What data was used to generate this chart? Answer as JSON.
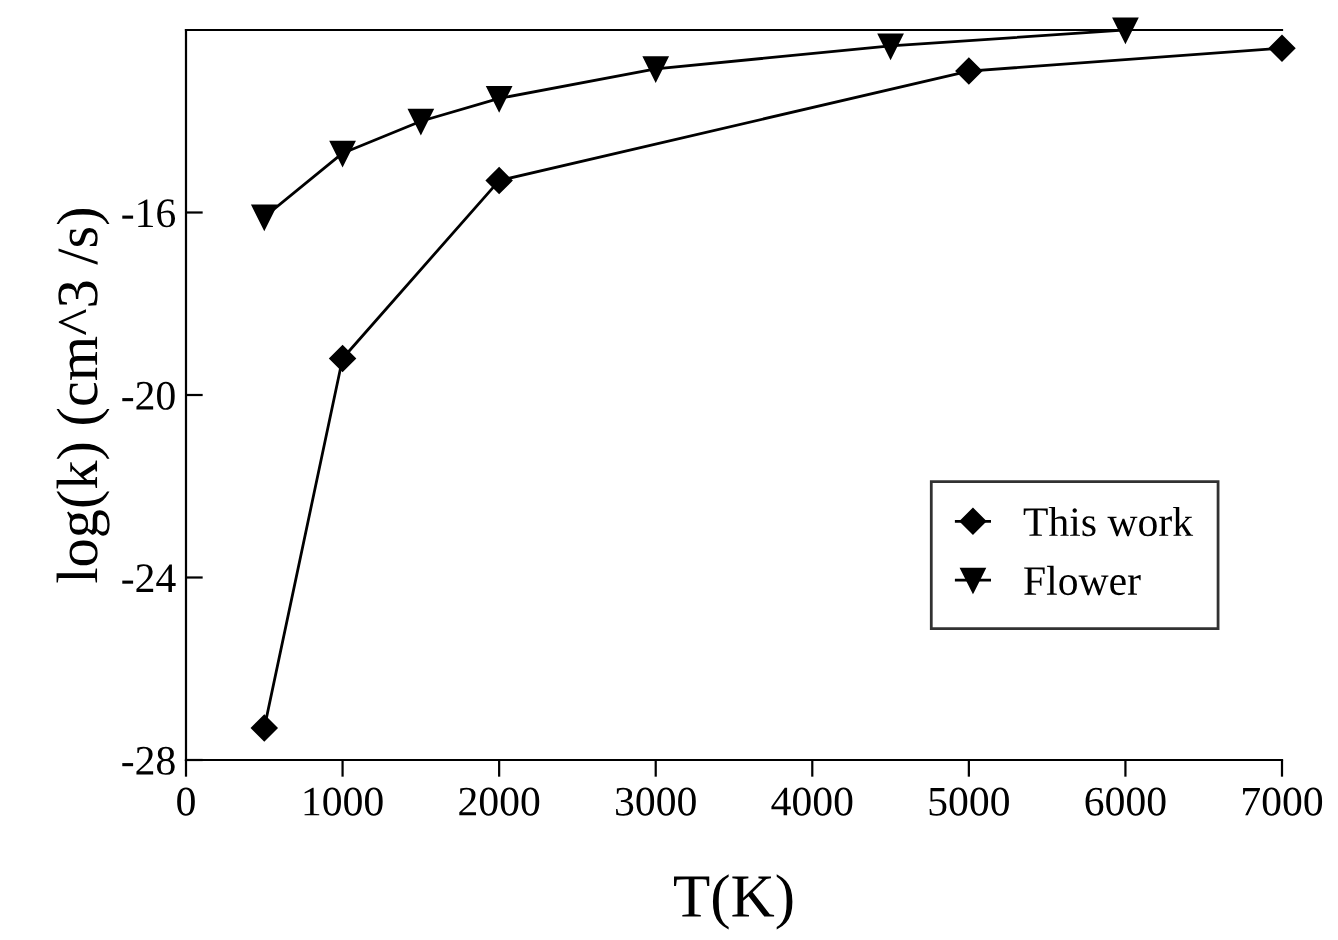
{
  "chart_data": {
    "type": "line",
    "xlabel": "T(K)",
    "ylabel": "log(k) (cm^3 /s)",
    "xlim": [
      0,
      7000
    ],
    "xticks": [
      0,
      1000,
      2000,
      3000,
      4000,
      5000,
      6000,
      7000
    ],
    "ylim": [
      -28,
      -12
    ],
    "yticks": [
      -28,
      -24,
      -20,
      -16
    ],
    "legend": "bottom right",
    "grid": false,
    "series": [
      {
        "name": "This work",
        "color": "#000000",
        "marker": "diamond",
        "x": [
          500,
          1000,
          2000,
          5000,
          7000
        ],
        "values": [
          -27.3,
          -19.2,
          -15.3,
          -12.9,
          -12.4
        ]
      },
      {
        "name": "Flower",
        "color": "#000000",
        "marker": "triangle",
        "x": [
          500,
          1000,
          1500,
          2000,
          3000,
          4500,
          6000
        ],
        "values": [
          -16.1,
          -14.7,
          -14.0,
          -13.5,
          -12.85,
          -12.35,
          -12.0
        ]
      }
    ]
  }
}
